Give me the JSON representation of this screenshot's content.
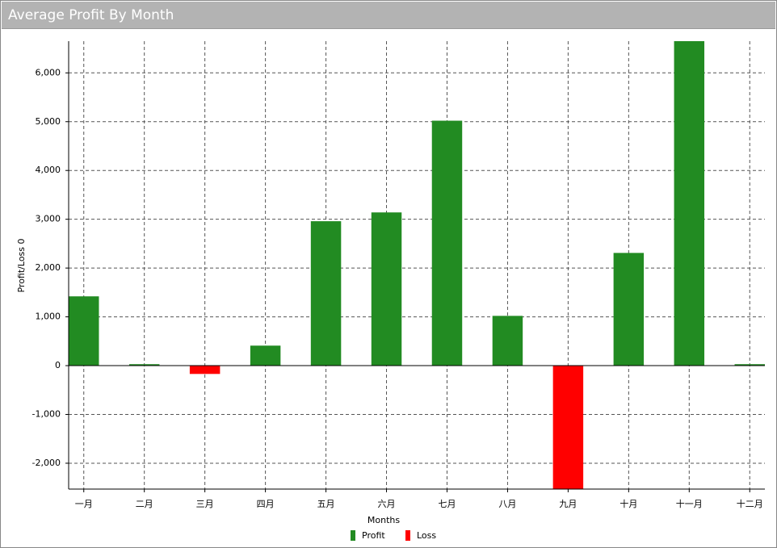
{
  "chart_data": {
    "type": "bar",
    "title": "Average Profit By Month",
    "x_label": "Months",
    "y_label": "Profit/Loss 0",
    "categories": [
      "一月",
      "二月",
      "三月",
      "四月",
      "五月",
      "六月",
      "七月",
      "八月",
      "九月",
      "十月",
      "十一月",
      "十二月"
    ],
    "series": [
      {
        "name": "Profit",
        "color": "#228b22",
        "values": [
          1420,
          30,
          null,
          410,
          2960,
          3140,
          5020,
          1020,
          null,
          2310,
          6650,
          30
        ]
      },
      {
        "name": "Loss",
        "color": "#ff0000",
        "values": [
          null,
          null,
          -170,
          null,
          null,
          null,
          null,
          null,
          -2530,
          null,
          null,
          null
        ]
      }
    ],
    "ylim": [
      -2530,
      6650
    ],
    "yticks": [
      {
        "value": -2000,
        "label": "-2,000"
      },
      {
        "value": -1000,
        "label": "-1,000"
      },
      0,
      {
        "value": 1000,
        "label": "1,000"
      },
      {
        "value": 2000,
        "label": "2,000"
      },
      {
        "value": 3000,
        "label": "3,000"
      },
      {
        "value": 4000,
        "label": "4,000"
      },
      {
        "value": 5000,
        "label": "5,000"
      },
      {
        "value": 6000,
        "label": "6,000"
      }
    ],
    "grid": true
  }
}
